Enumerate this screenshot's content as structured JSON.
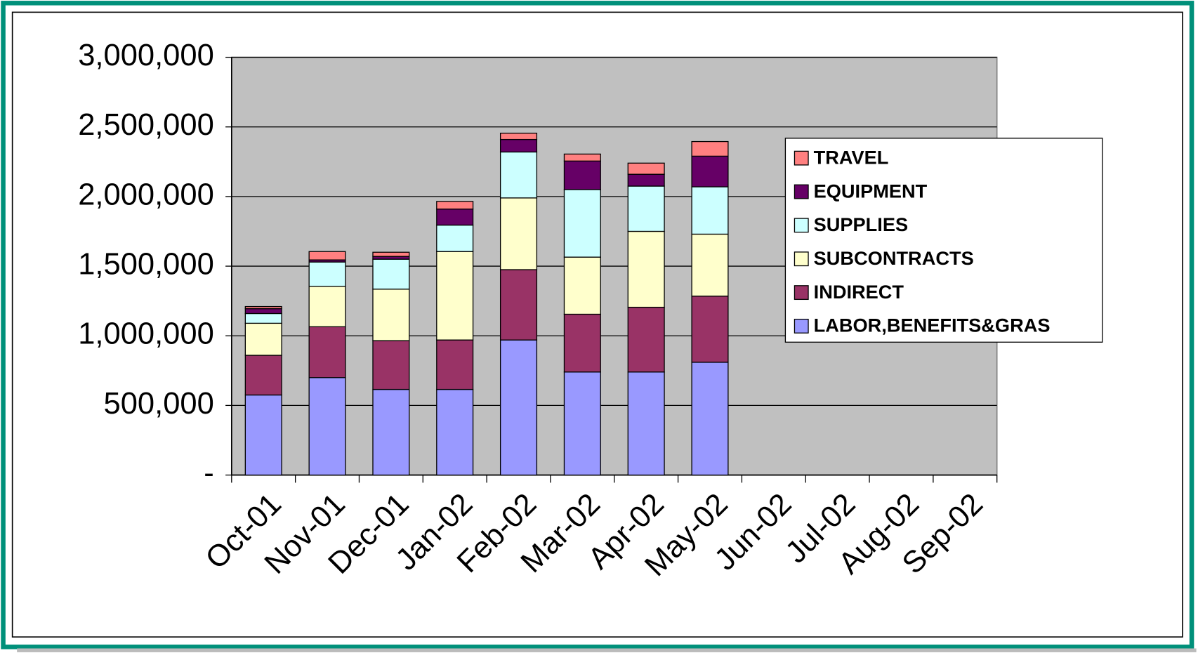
{
  "chart_data": {
    "type": "bar",
    "stacked": true,
    "categories": [
      "Oct-01",
      "Nov-01",
      "Dec-01",
      "Jan-02",
      "Feb-02",
      "Mar-02",
      "Apr-02",
      "May-02",
      "Jun-02",
      "Jul-02",
      "Aug-02",
      "Sep-02"
    ],
    "series": [
      {
        "name": "LABOR,BENEFITS&GRAS",
        "color": "#9999ff",
        "values": [
          575000,
          700000,
          615000,
          615000,
          970000,
          740000,
          740000,
          810000,
          null,
          null,
          null,
          null
        ]
      },
      {
        "name": "INDIRECT",
        "color": "#993366",
        "values": [
          285000,
          365000,
          350000,
          355000,
          505000,
          415000,
          465000,
          475000,
          null,
          null,
          null,
          null
        ]
      },
      {
        "name": "SUBCONTRACTS",
        "color": "#ffffcc",
        "values": [
          230000,
          290000,
          370000,
          635000,
          515000,
          410000,
          545000,
          445000,
          null,
          null,
          null,
          null
        ]
      },
      {
        "name": "SUPPLIES",
        "color": "#ccffff",
        "values": [
          70000,
          175000,
          215000,
          190000,
          330000,
          485000,
          325000,
          340000,
          null,
          null,
          null,
          null
        ]
      },
      {
        "name": "EQUIPMENT",
        "color": "#660066",
        "values": [
          35000,
          15000,
          20000,
          115000,
          90000,
          205000,
          85000,
          220000,
          null,
          null,
          null,
          null
        ]
      },
      {
        "name": "TRAVEL",
        "color": "#ff8080",
        "values": [
          15000,
          60000,
          30000,
          55000,
          45000,
          50000,
          80000,
          105000,
          null,
          null,
          null,
          null
        ]
      }
    ],
    "ylim": [
      0,
      3000000
    ],
    "yticks": [
      {
        "value": 0,
        "label": "-"
      },
      {
        "value": 500000,
        "label": "500,000"
      },
      {
        "value": 1000000,
        "label": "1,000,000"
      },
      {
        "value": 1500000,
        "label": "1,500,000"
      },
      {
        "value": 2000000,
        "label": "2,000,000"
      },
      {
        "value": 2500000,
        "label": "2,500,000"
      },
      {
        "value": 3000000,
        "label": "3,000,000"
      }
    ],
    "grid": true,
    "legend": "right",
    "plot_background": "#c0c0c0"
  }
}
